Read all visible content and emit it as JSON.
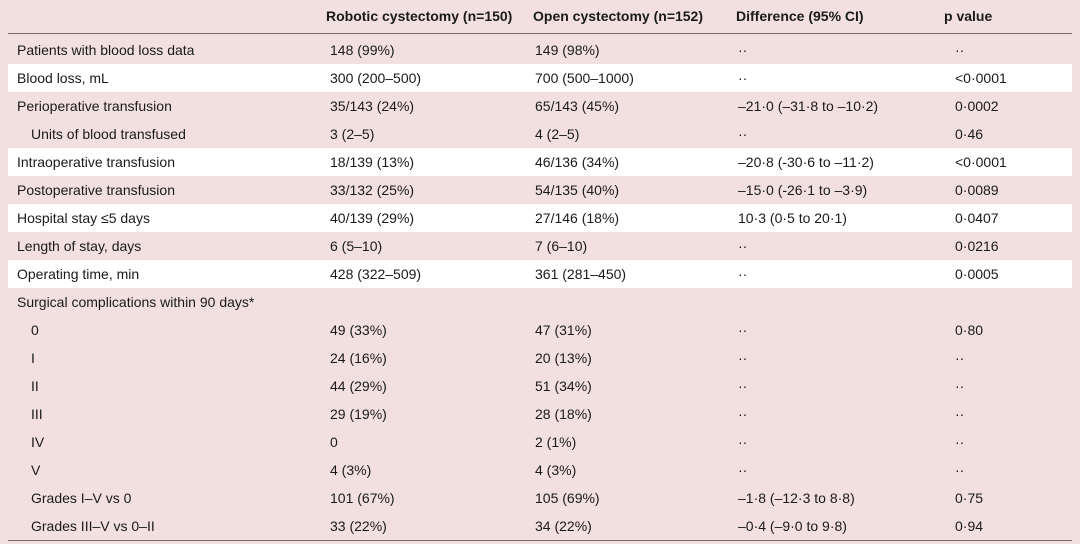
{
  "table": {
    "header": [
      "Robotic cystectomy (n=150)",
      "Open cystectomy (n=152)",
      "Difference (95% CI)",
      "p value"
    ],
    "rows": [
      {
        "label": "Patients with blood loss data",
        "cells": [
          "148 (99%)",
          "149 (98%)",
          "··",
          "··"
        ]
      },
      {
        "label": "Blood loss, mL",
        "cells": [
          "300 (200–500)",
          "700 (500–1000)",
          "··",
          "<0·0001"
        ]
      },
      {
        "label": "Perioperative transfusion",
        "cells": [
          "35/143 (24%)",
          "65/143 (45%)",
          "–21·0 (–31·8 to –10·2)",
          "0·0002"
        ]
      },
      {
        "label": "Units of blood transfused",
        "cells": [
          "3 (2–5)",
          "4 (2–5)",
          "··",
          "0·46"
        ]
      },
      {
        "label": "Intraoperative transfusion",
        "cells": [
          "18/139 (13%)",
          "46/136 (34%)",
          "–20·8 (-30·6 to –11·2)",
          "<0·0001"
        ]
      },
      {
        "label": "Postoperative transfusion",
        "cells": [
          "33/132 (25%)",
          "54/135 (40%)",
          "–15·0 (-26·1 to –3·9)",
          "0·0089"
        ]
      },
      {
        "label": "Hospital stay ≤5 days",
        "cells": [
          "40/139 (29%)",
          "27/146 (18%)",
          "10·3 (0·5 to 20·1)",
          "0·0407"
        ]
      },
      {
        "label": "Length of stay, days",
        "cells": [
          "6 (5–10)",
          "7 (6–10)",
          "··",
          "0·0216"
        ]
      },
      {
        "label": "Operating time, min",
        "cells": [
          "428 (322–509)",
          "361 (281–450)",
          "··",
          "0·0005"
        ]
      },
      {
        "label": "Surgical complications within 90 days*",
        "cells": []
      },
      {
        "label": "0",
        "cells": [
          "49 (33%)",
          "47 (31%)",
          "··",
          "0·80"
        ]
      },
      {
        "label": "I",
        "cells": [
          "24 (16%)",
          "20 (13%)",
          "··",
          "··"
        ]
      },
      {
        "label": "II",
        "cells": [
          "44 (29%)",
          "51 (34%)",
          "··",
          "··"
        ]
      },
      {
        "label": "III",
        "cells": [
          "29 (19%)",
          "28 (18%)",
          "··",
          "··"
        ]
      },
      {
        "label": "IV",
        "cells": [
          "0",
          "2 (1%)",
          "··",
          "··"
        ]
      },
      {
        "label": "V",
        "cells": [
          "4 (3%)",
          "4 (3%)",
          "··",
          "··"
        ]
      },
      {
        "label": "Grades I–V vs 0",
        "cells": [
          "101 (67%)",
          "105 (69%)",
          "–1·8 (–12·3 to 8·8)",
          "0·75"
        ]
      },
      {
        "label": "Grades III–V vs 0–II",
        "cells": [
          "33 (22%)",
          "34 (22%)",
          "–0·4 (–9·0 to 9·8)",
          "0·94"
        ]
      }
    ]
  }
}
